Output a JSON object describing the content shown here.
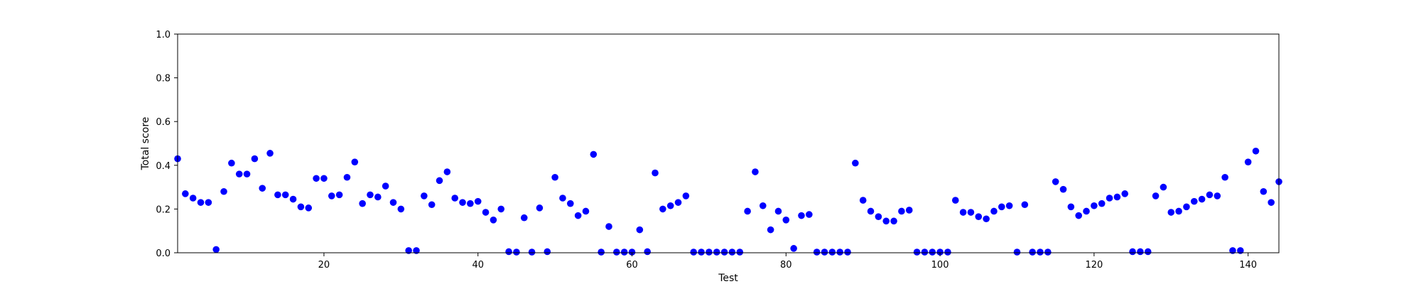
{
  "chart_data": {
    "type": "scatter",
    "xlabel": "Test",
    "ylabel": "Total score",
    "xlim": [
      1,
      144
    ],
    "ylim": [
      0.0,
      1.0
    ],
    "grid": false,
    "marker_color": "#0000ff",
    "axis_color": "#000000",
    "x_ticks": [
      20,
      40,
      60,
      80,
      100,
      120,
      140
    ],
    "y_ticks": [
      0.0,
      0.2,
      0.4,
      0.6,
      0.8,
      1.0
    ],
    "x_tick_labels": [
      "20",
      "40",
      "60",
      "80",
      "100",
      "120",
      "140"
    ],
    "y_tick_labels": [
      "0.0",
      "0.2",
      "0.4",
      "0.6",
      "0.8",
      "1.0"
    ],
    "series": [
      {
        "points": [
          [
            1,
            0.43
          ],
          [
            2,
            0.27
          ],
          [
            3,
            0.25
          ],
          [
            4,
            0.23
          ],
          [
            5,
            0.23
          ],
          [
            6,
            0.015
          ],
          [
            7,
            0.28
          ],
          [
            8,
            0.41
          ],
          [
            9,
            0.36
          ],
          [
            10,
            0.36
          ],
          [
            11,
            0.43
          ],
          [
            12,
            0.295
          ],
          [
            13,
            0.455
          ],
          [
            14,
            0.265
          ],
          [
            15,
            0.265
          ],
          [
            16,
            0.245
          ],
          [
            17,
            0.21
          ],
          [
            18,
            0.205
          ],
          [
            19,
            0.34
          ],
          [
            20,
            0.34
          ],
          [
            21,
            0.26
          ],
          [
            22,
            0.265
          ],
          [
            23,
            0.345
          ],
          [
            24,
            0.415
          ],
          [
            25,
            0.225
          ],
          [
            26,
            0.265
          ],
          [
            27,
            0.255
          ],
          [
            28,
            0.305
          ],
          [
            29,
            0.23
          ],
          [
            30,
            0.2
          ],
          [
            31,
            0.01
          ],
          [
            32,
            0.01
          ],
          [
            33,
            0.26
          ],
          [
            34,
            0.22
          ],
          [
            35,
            0.33
          ],
          [
            36,
            0.37
          ],
          [
            37,
            0.25
          ],
          [
            38,
            0.23
          ],
          [
            39,
            0.225
          ],
          [
            40,
            0.235
          ],
          [
            41,
            0.185
          ],
          [
            42,
            0.15
          ],
          [
            43,
            0.2
          ],
          [
            44,
            0.005
          ],
          [
            45,
            0.003
          ],
          [
            46,
            0.16
          ],
          [
            47,
            0.003
          ],
          [
            48,
            0.205
          ],
          [
            49,
            0.005
          ],
          [
            50,
            0.345
          ],
          [
            51,
            0.25
          ],
          [
            52,
            0.225
          ],
          [
            53,
            0.17
          ],
          [
            54,
            0.19
          ],
          [
            55,
            0.45
          ],
          [
            56,
            0.003
          ],
          [
            57,
            0.12
          ],
          [
            58,
            0.003
          ],
          [
            59,
            0.003
          ],
          [
            60,
            0.003
          ],
          [
            61,
            0.105
          ],
          [
            62,
            0.005
          ],
          [
            63,
            0.365
          ],
          [
            64,
            0.2
          ],
          [
            65,
            0.215
          ],
          [
            66,
            0.23
          ],
          [
            67,
            0.26
          ],
          [
            68,
            0.003
          ],
          [
            69,
            0.003
          ],
          [
            70,
            0.003
          ],
          [
            71,
            0.003
          ],
          [
            72,
            0.003
          ],
          [
            73,
            0.003
          ],
          [
            74,
            0.003
          ],
          [
            75,
            0.19
          ],
          [
            76,
            0.37
          ],
          [
            77,
            0.215
          ],
          [
            78,
            0.105
          ],
          [
            79,
            0.19
          ],
          [
            80,
            0.15
          ],
          [
            81,
            0.02
          ],
          [
            82,
            0.17
          ],
          [
            83,
            0.175
          ],
          [
            84,
            0.003
          ],
          [
            85,
            0.003
          ],
          [
            86,
            0.003
          ],
          [
            87,
            0.003
          ],
          [
            88,
            0.003
          ],
          [
            89,
            0.41
          ],
          [
            90,
            0.24
          ],
          [
            91,
            0.19
          ],
          [
            92,
            0.165
          ],
          [
            93,
            0.145
          ],
          [
            94,
            0.145
          ],
          [
            95,
            0.19
          ],
          [
            96,
            0.195
          ],
          [
            97,
            0.003
          ],
          [
            98,
            0.003
          ],
          [
            99,
            0.003
          ],
          [
            100,
            0.003
          ],
          [
            101,
            0.003
          ],
          [
            102,
            0.24
          ],
          [
            103,
            0.185
          ],
          [
            104,
            0.185
          ],
          [
            105,
            0.165
          ],
          [
            106,
            0.155
          ],
          [
            107,
            0.19
          ],
          [
            108,
            0.21
          ],
          [
            109,
            0.215
          ],
          [
            110,
            0.003
          ],
          [
            111,
            0.22
          ],
          [
            112,
            0.003
          ],
          [
            113,
            0.003
          ],
          [
            114,
            0.003
          ],
          [
            115,
            0.325
          ],
          [
            116,
            0.29
          ],
          [
            117,
            0.21
          ],
          [
            118,
            0.17
          ],
          [
            119,
            0.19
          ],
          [
            120,
            0.215
          ],
          [
            121,
            0.225
          ],
          [
            122,
            0.25
          ],
          [
            123,
            0.255
          ],
          [
            124,
            0.27
          ],
          [
            125,
            0.005
          ],
          [
            126,
            0.005
          ],
          [
            127,
            0.005
          ],
          [
            128,
            0.26
          ],
          [
            129,
            0.3
          ],
          [
            130,
            0.185
          ],
          [
            131,
            0.19
          ],
          [
            132,
            0.21
          ],
          [
            133,
            0.235
          ],
          [
            134,
            0.245
          ],
          [
            135,
            0.265
          ],
          [
            136,
            0.26
          ],
          [
            137,
            0.345
          ],
          [
            138,
            0.01
          ],
          [
            139,
            0.01
          ],
          [
            140,
            0.415
          ],
          [
            141,
            0.465
          ],
          [
            142,
            0.28
          ],
          [
            143,
            0.23
          ],
          [
            144,
            0.325
          ]
        ]
      }
    ]
  }
}
